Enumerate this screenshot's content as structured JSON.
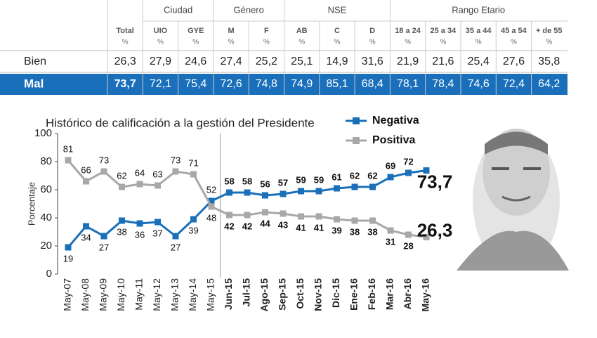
{
  "table": {
    "groups": [
      {
        "columns": [
          {
            "label": "Total",
            "unit": "%"
          }
        ]
      },
      {
        "name": "Ciudad",
        "columns": [
          {
            "label": "UIO",
            "unit": "%"
          },
          {
            "label": "GYE",
            "unit": "%"
          }
        ]
      },
      {
        "name": "Género",
        "columns": [
          {
            "label": "M",
            "unit": "%"
          },
          {
            "label": "F",
            "unit": "%"
          }
        ]
      },
      {
        "name": "NSE",
        "columns": [
          {
            "label": "AB",
            "unit": "%"
          },
          {
            "label": "C",
            "unit": "%"
          },
          {
            "label": "D",
            "unit": "%"
          }
        ]
      },
      {
        "name": "Rango Etario",
        "columns": [
          {
            "label": "18 a 24",
            "unit": "%"
          },
          {
            "label": "25 a 34",
            "unit": "%"
          },
          {
            "label": "35 a 44",
            "unit": "%"
          },
          {
            "label": "45 a 54",
            "unit": "%"
          },
          {
            "label": "+ de 55",
            "unit": "%"
          }
        ]
      }
    ],
    "rows": [
      {
        "label": "Bien",
        "values": [
          "26,3",
          "27,9",
          "24,6",
          "27,4",
          "25,2",
          "25,1",
          "14,9",
          "31,6",
          "21,9",
          "21,6",
          "25,4",
          "27,6",
          "35,8"
        ]
      },
      {
        "label": "Mal",
        "values": [
          "73,7",
          "72,1",
          "75,4",
          "72,6",
          "74,8",
          "74,9",
          "85,1",
          "68,4",
          "78,1",
          "78,4",
          "74,6",
          "72,4",
          "64,2"
        ]
      }
    ]
  },
  "chart_data": {
    "type": "line",
    "title": "Histórico de calificación a la gestión del Presidente",
    "y_label": "Porcentaje",
    "categories": [
      "May-07",
      "May-08",
      "May-09",
      "May-10",
      "May-11",
      "May-12",
      "May-13",
      "May-14",
      "May-15",
      "Jun-15",
      "Jul-15",
      "Ago-15",
      "Sep-15",
      "Oct-15",
      "Nov-15",
      "Dic-15",
      "Ene-16",
      "Feb-16",
      "Mar-16",
      "Abr-16",
      "May-16"
    ],
    "series": [
      {
        "name": "Negativa",
        "color": "#1a6fba",
        "values": [
          19,
          34,
          27,
          38,
          36,
          37,
          27,
          39,
          52,
          58,
          58,
          56,
          57,
          59,
          59,
          61,
          62,
          62,
          69,
          72,
          73.7
        ],
        "value_labels": [
          "19",
          "34",
          "27",
          "38",
          "36",
          "37",
          "27",
          "39",
          "52",
          "58",
          "58",
          "56",
          "57",
          "59",
          "59",
          "61",
          "62",
          "62",
          "69",
          "72",
          "73,7"
        ]
      },
      {
        "name": "Positiva",
        "color": "#a8a8a8",
        "values": [
          81,
          66,
          73,
          62,
          64,
          63,
          73,
          71,
          48,
          42,
          42,
          44,
          43,
          41,
          41,
          39,
          38,
          38,
          31,
          28,
          26.3
        ],
        "value_labels": [
          "81",
          "66",
          "73",
          "62",
          "64",
          "63",
          "73",
          "71",
          "48",
          "42",
          "42",
          "44",
          "43",
          "41",
          "41",
          "39",
          "38",
          "38",
          "31",
          "28",
          "26,3"
        ]
      }
    ],
    "ylim": [
      0,
      100
    ],
    "yticks": [
      0,
      20,
      40,
      60,
      80,
      100
    ],
    "grid": false,
    "legend": "top-right"
  }
}
